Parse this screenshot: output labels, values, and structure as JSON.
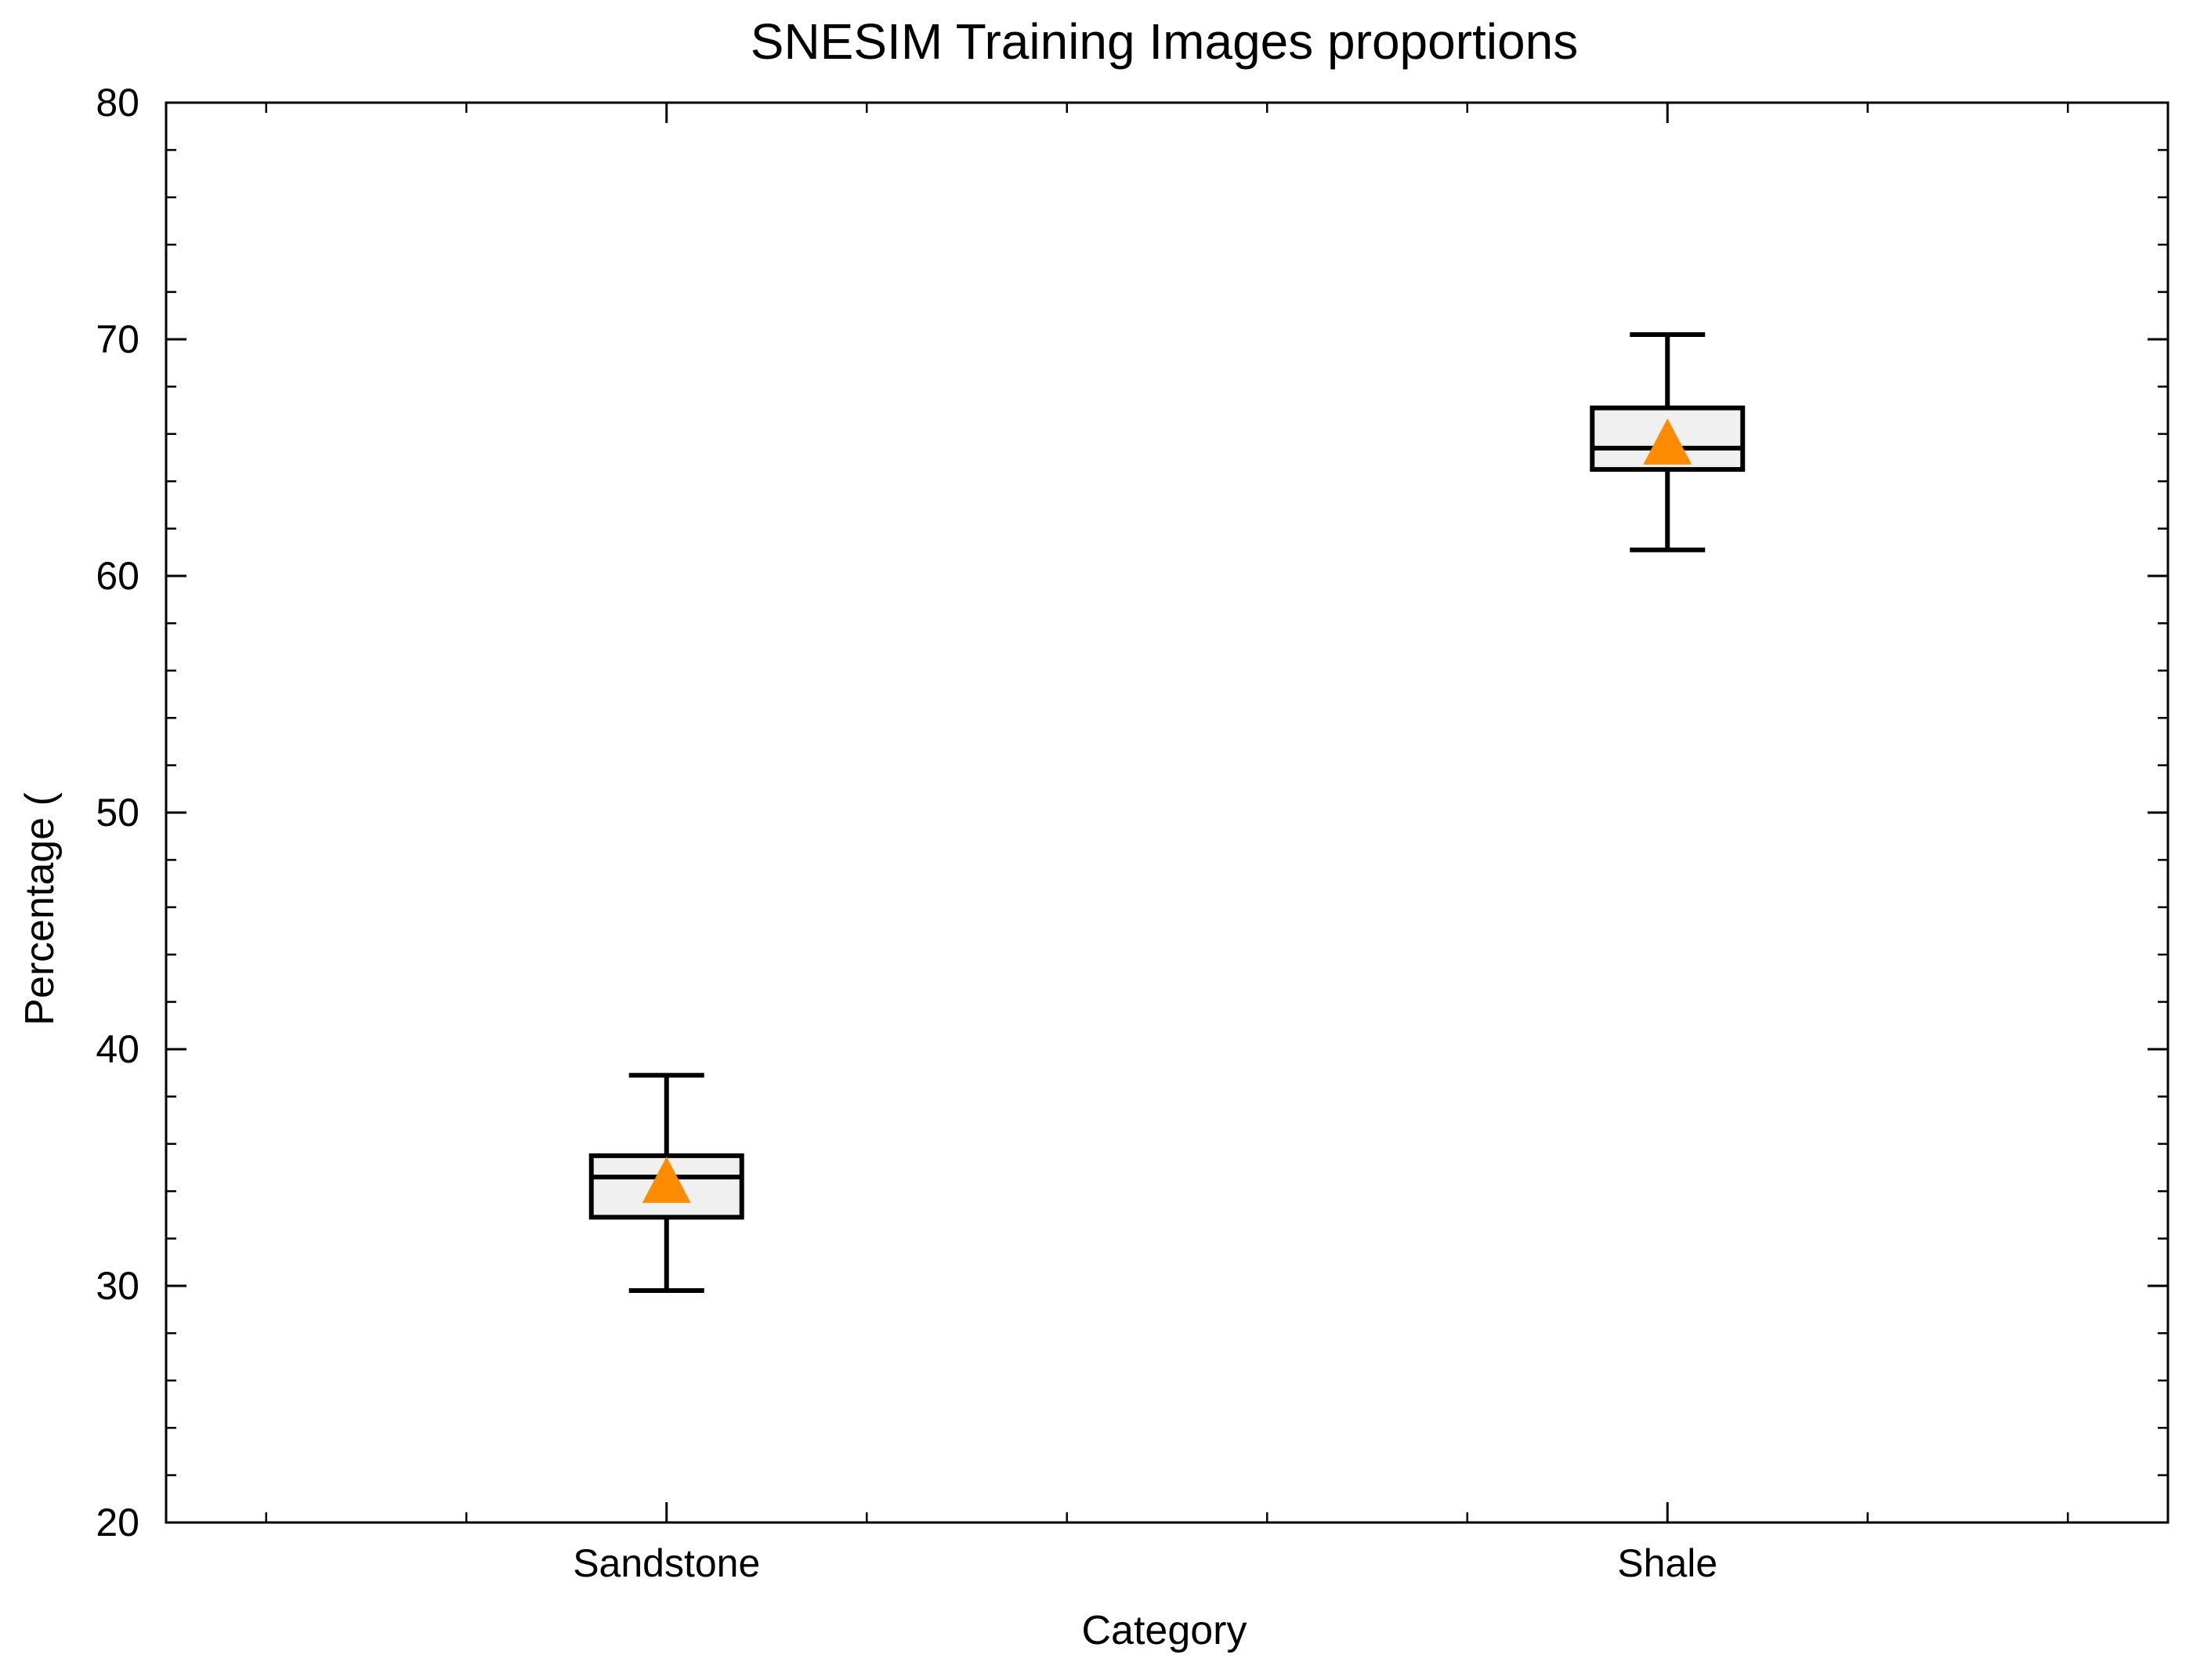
{
  "chart_data": {
    "type": "box",
    "title": "SNESIM Training Images proportions",
    "xlabel": "Category",
    "ylabel": "Percentage (",
    "ylim": [
      20,
      80
    ],
    "yticks": [
      20,
      30,
      40,
      50,
      60,
      70,
      80
    ],
    "ytick_labels": [
      "20",
      "30",
      "40",
      "50",
      "60",
      "70",
      "80"
    ],
    "y_minor_step": 2,
    "grid": false,
    "categories": [
      "Sandstone",
      "Shale"
    ],
    "boxes": [
      {
        "name": "Sandstone",
        "whisker_low": 29.8,
        "q1": 32.9,
        "median": 34.6,
        "q3": 35.5,
        "whisker_high": 38.9,
        "mean": 34.4
      },
      {
        "name": "Shale",
        "whisker_low": 61.1,
        "q1": 64.5,
        "median": 65.4,
        "q3": 67.1,
        "whisker_high": 70.2,
        "mean": 65.6
      }
    ],
    "colors": {
      "box_fill": "#f0f0f0",
      "box_edge": "#000000",
      "mean_marker": "#ff8c00"
    },
    "mean_marker": "triangle"
  }
}
